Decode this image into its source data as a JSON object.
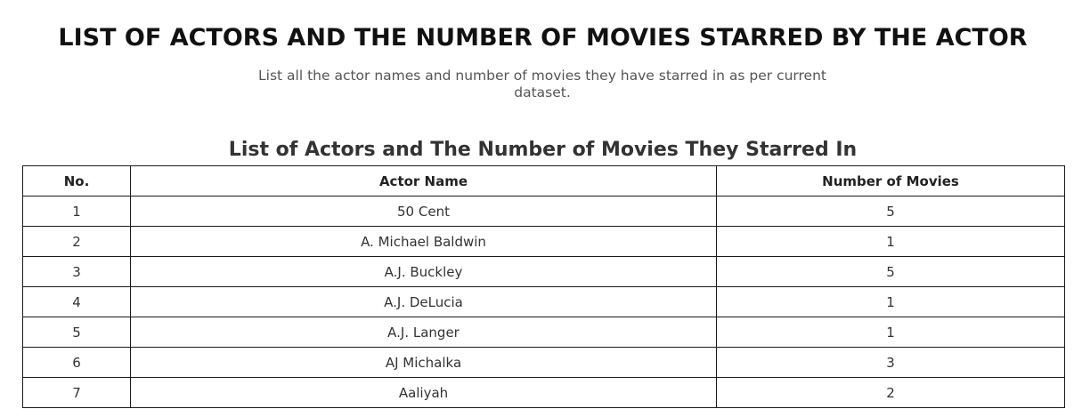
{
  "page": {
    "title": "LIST OF ACTORS AND THE NUMBER OF MOVIES STARRED BY THE ACTOR",
    "subtitle": "List all the actor names and number of movies they have starred in as per current dataset.",
    "section_heading": "List of Actors and The Number of Movies They Starred In"
  },
  "table": {
    "headers": {
      "no": "No.",
      "actor_name": "Actor Name",
      "movie_count": "Number of Movies"
    },
    "rows": [
      {
        "no": "1",
        "actor_name": "50 Cent",
        "movie_count": "5"
      },
      {
        "no": "2",
        "actor_name": "A. Michael Baldwin",
        "movie_count": "1"
      },
      {
        "no": "3",
        "actor_name": "A.J. Buckley",
        "movie_count": "5"
      },
      {
        "no": "4",
        "actor_name": "A.J. DeLucia",
        "movie_count": "1"
      },
      {
        "no": "5",
        "actor_name": "A.J. Langer",
        "movie_count": "1"
      },
      {
        "no": "6",
        "actor_name": "AJ Michalka",
        "movie_count": "3"
      },
      {
        "no": "7",
        "actor_name": "Aaliyah",
        "movie_count": "2"
      }
    ]
  }
}
